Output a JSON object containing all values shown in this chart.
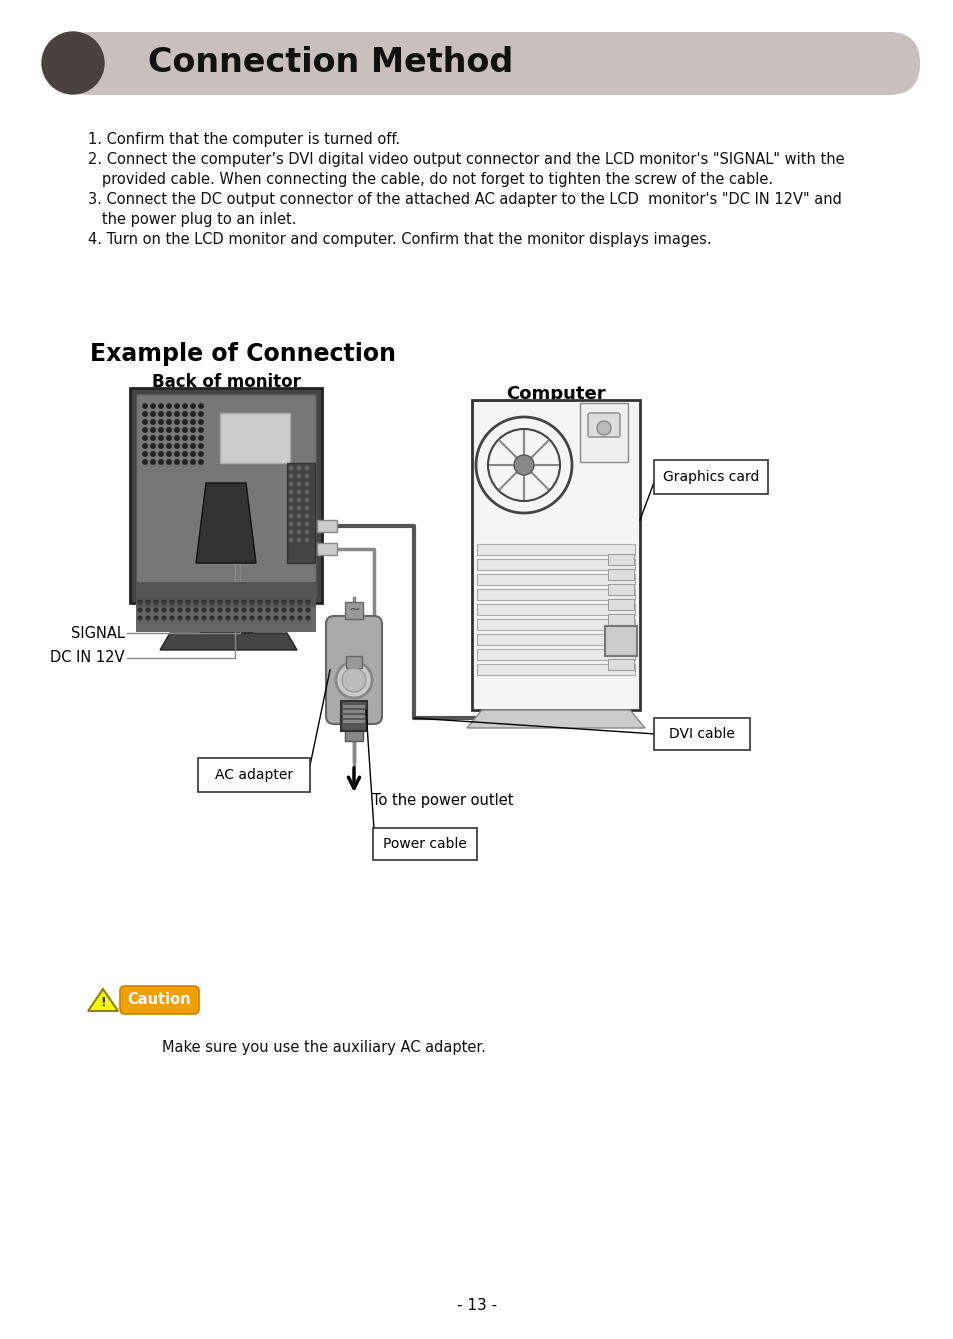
{
  "page_bg": "#ffffff",
  "title_bar_color": "#c8bfbe",
  "title_circle_color": "#4a4040",
  "title_text": "Connection Method",
  "section2_title": "Example of Connection",
  "instr1": "1. Confirm that the computer is turned off.",
  "instr2a": "2. Connect the computer’s DVI digital video output connector and the LCD monitor's \"SIGNAL\" with the",
  "instr2b": "   provided cable. When connecting the cable, do not forget to tighten the screw of the cable.",
  "instr3a": "3. Connect the DC output connector of the attached AC adapter to the LCD  monitor's \"DC IN 12V\" and",
  "instr3b": "   the power plug to an inlet.",
  "instr4": "4. Turn on the LCD monitor and computer. Confirm that the monitor displays images.",
  "label_back_monitor": "Back of monitor",
  "label_computer": "Computer",
  "label_signal": "SIGNAL",
  "label_dc": "DC IN 12V",
  "label_ac_adapter": "AC adapter",
  "label_power_cable": "Power cable",
  "label_graphics_card": "Graphics card",
  "label_dvi_cable": "DVI cable",
  "label_power_outlet": "To the power outlet",
  "caution_label": "Caution",
  "caution_text": "Make sure you use the auxiliary AC adapter.",
  "page_number": "- 13 -",
  "monitor_dark": "#555555",
  "monitor_mid": "#888888",
  "monitor_light": "#bbbbbb",
  "computer_bg": "#f8f8f8",
  "line_color": "#000000"
}
